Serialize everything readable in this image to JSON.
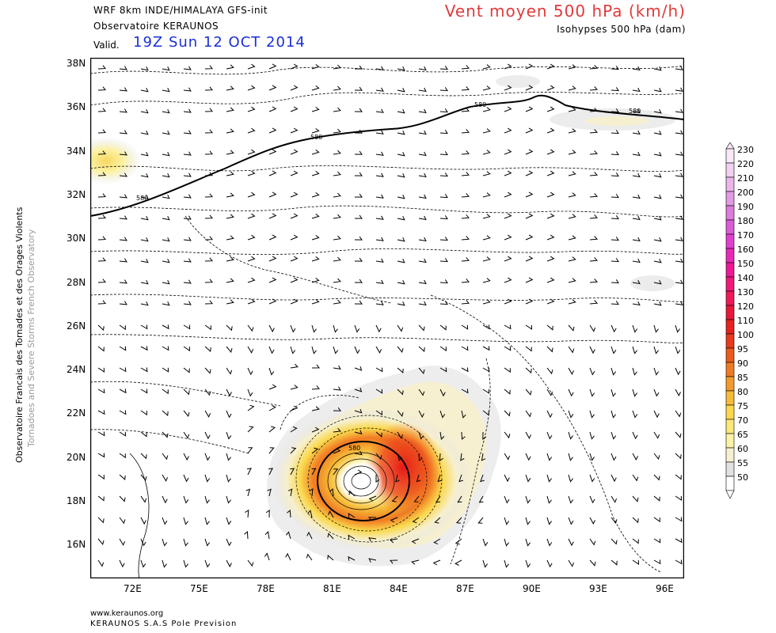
{
  "header": {
    "model_line": "WRF 8km INDE/HIMALAYA  GFS-init",
    "observatory": "Observatoire KERAUNOS",
    "valid_label": "Valid.",
    "valid_date": "19Z Sun 12 OCT 2014",
    "title": "Vent moyen 500 hPa (km/h)",
    "subtitle": "Isohypses 500 hPa (dam)"
  },
  "sidebar": {
    "main": "Observatoire Francais des Tornades et des Orages Violents",
    "sub": "Tornadoes and Severe Storms French Observatory"
  },
  "footer": {
    "url": "www.keraunos.org",
    "company": "KERAUNOS S.A.S Pole Prevision"
  },
  "map": {
    "lat_labels": [
      "38N",
      "36N",
      "34N",
      "32N",
      "30N",
      "28N",
      "26N",
      "24N",
      "22N",
      "20N",
      "18N",
      "16N"
    ],
    "lon_labels": [
      "72E",
      "75E",
      "78E",
      "81E",
      "84E",
      "87E",
      "90E",
      "93E",
      "96E"
    ],
    "contour_label": "580",
    "cyclone_center": {
      "lon": 82.5,
      "lat": 18.8
    }
  },
  "colorbar": {
    "levels": [
      "230",
      "220",
      "210",
      "200",
      "190",
      "180",
      "170",
      "160",
      "150",
      "140",
      "130",
      "120",
      "110",
      "100",
      "95",
      "90",
      "85",
      "80",
      "75",
      "70",
      "65",
      "60",
      "55",
      "50"
    ],
    "colors": [
      "#f8e8f8",
      "#f2d0f2",
      "#eab6ea",
      "#e29ae2",
      "#dc7cdc",
      "#dc5cd8",
      "#e040d0",
      "#ea28b8",
      "#ee1898",
      "#f01878",
      "#f01858",
      "#e81838",
      "#e82020",
      "#e83a1c",
      "#ec5a1c",
      "#f07a22",
      "#f49a2c",
      "#f6bb38",
      "#fad84c",
      "#fce878",
      "#fcf2a6",
      "#f6f0d0",
      "#e2e2e2",
      "#ffffff"
    ]
  }
}
